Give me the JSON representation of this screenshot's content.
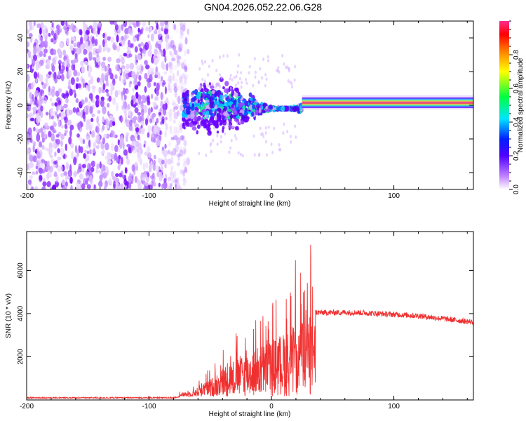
{
  "title": "GN04.2026.052.22.06.G28",
  "chart_data": [
    {
      "type": "heatmap",
      "title": "GN04.2026.052.22.06.G28",
      "xlabel": "Height of straight line (km)",
      "ylabel": "Frequency (Hz)",
      "xlim": [
        -200,
        165
      ],
      "ylim": [
        -50,
        50
      ],
      "xticks": [
        -200,
        -100,
        0,
        100
      ],
      "yticks": [
        -40,
        -20,
        0,
        20,
        40
      ],
      "colorbar": {
        "label": "Normalized spectral amplitude",
        "range": [
          0,
          1
        ],
        "ticks": [
          0.0,
          0.2,
          0.4,
          0.6,
          0.8
        ],
        "tick_labels": [
          "0.0",
          "0.2",
          "0.4",
          "0.6",
          "0.8"
        ],
        "colors": [
          "#ffffff",
          "#7a00ff",
          "#0000ff",
          "#00e5ff",
          "#00ff00",
          "#ffff00",
          "#ff8000",
          "#ff0000",
          "#ff2a90"
        ]
      },
      "regions": [
        {
          "name": "scattered noise",
          "x_range": [
            -200,
            -72
          ],
          "freq_range": [
            -50,
            50
          ],
          "amplitude": 0.1
        },
        {
          "name": "noisy band",
          "x_range": [
            -72,
            25
          ],
          "freq_range": [
            -12,
            8
          ],
          "amplitude": 0.3
        },
        {
          "name": "tracking line",
          "x_range": [
            25,
            165
          ],
          "freq_center": 1.5,
          "amplitude": 1.0
        }
      ]
    },
    {
      "type": "line",
      "xlabel": "Height of straight line (km)",
      "ylabel": "SNR (10 * v/v)",
      "xlim": [
        -200,
        165
      ],
      "ylim": [
        0,
        7800
      ],
      "xticks": [
        -200,
        -100,
        0,
        100
      ],
      "yticks": [
        2000,
        4000,
        6000
      ],
      "color": "#f03030",
      "envelope": [
        {
          "x": -200,
          "y": 100
        },
        {
          "x": -80,
          "y": 100
        },
        {
          "x": -65,
          "y": 300
        },
        {
          "x": -50,
          "y": 900
        },
        {
          "x": -35,
          "y": 1800
        },
        {
          "x": -20,
          "y": 2300
        },
        {
          "x": -5,
          "y": 2800
        },
        {
          "x": 10,
          "y": 3300
        },
        {
          "x": 30,
          "y": 4200
        },
        {
          "x": 37,
          "y": 4050
        },
        {
          "x": 70,
          "y": 4050
        },
        {
          "x": 120,
          "y": 3900
        },
        {
          "x": 165,
          "y": 3600
        }
      ]
    }
  ]
}
